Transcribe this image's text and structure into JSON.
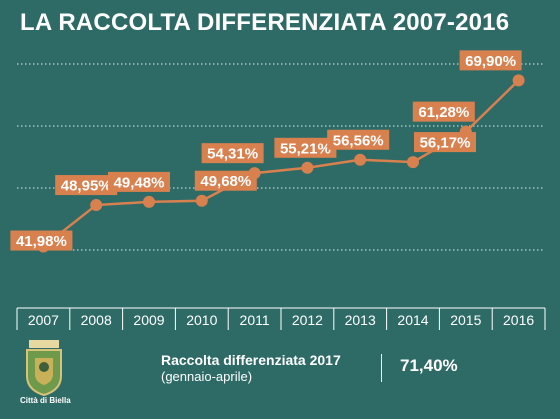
{
  "title": "LA RACCOLTA DIFFERENZIATA 2007-2016",
  "colors": {
    "background": "#2f6b66",
    "accent": "#d9804f",
    "label_text": "#ffffff",
    "grid": "#ffffff",
    "axis_text": "#ffffff"
  },
  "chart_data": {
    "type": "line",
    "title": "LA RACCOLTA DIFFERENZIATA 2007-2016",
    "categories": [
      "2007",
      "2008",
      "2009",
      "2010",
      "2011",
      "2012",
      "2013",
      "2014",
      "2015",
      "2016"
    ],
    "values": [
      41.98,
      48.95,
      49.48,
      49.68,
      54.31,
      55.21,
      56.56,
      56.17,
      61.28,
      69.9
    ],
    "data_labels": [
      "41,98%",
      "48,95%",
      "49,48%",
      "49,68%",
      "54,31%",
      "55,21%",
      "56,56%",
      "56,17%",
      "61,28%",
      "69,90%"
    ],
    "ylim": [
      33,
      75
    ],
    "grid": true,
    "grid_style": "dotted-horizontal",
    "legend": "none"
  },
  "footer": {
    "label": "Raccolta differenziata 2017",
    "sublabel": "(gennaio-aprile)",
    "value": "71,40%",
    "city": "Città di Biella",
    "crest_icon": "city-crest-icon"
  }
}
